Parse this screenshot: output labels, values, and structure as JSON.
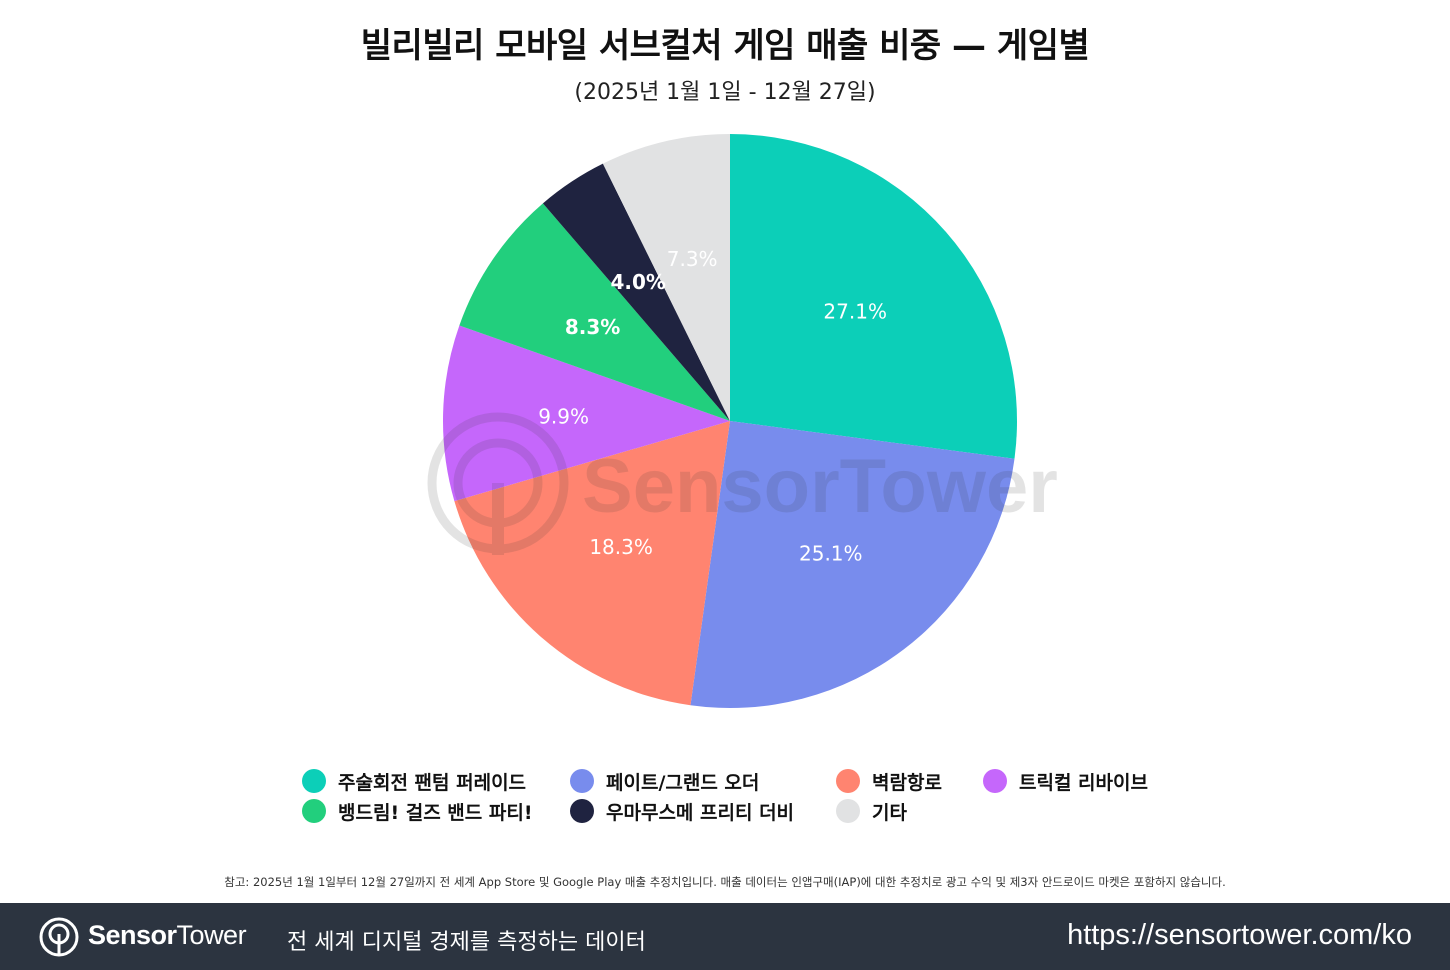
{
  "chart_data": {
    "type": "pie",
    "title": "빌리빌리 모바일 서브컬처 게임 매출 비중 — 게임별",
    "subtitle": "(2025년 1월 1일 - 12월 27일)",
    "series": [
      {
        "name": "주술회전 팬텀 퍼레이드",
        "value": 27.1,
        "label": "27.1%",
        "color": "#0ccfb8"
      },
      {
        "name": "페이트/그랜드 오더",
        "value": 25.1,
        "label": "25.1%",
        "color": "#788ced"
      },
      {
        "name": "벽람항로",
        "value": 18.3,
        "label": "18.3%",
        "color": "#ff8470"
      },
      {
        "name": "트릭컬 리바이브",
        "value": 9.9,
        "label": "9.9%",
        "color": "#c567fb"
      },
      {
        "name": "뱅드림! 걸즈 밴드 파티!",
        "value": 8.3,
        "label": "8.3%",
        "color": "#22cf7d"
      },
      {
        "name": "우마무스메 프리티 더비",
        "value": 4.0,
        "label": "4.0%",
        "color": "#1f2340"
      },
      {
        "name": "기타",
        "value": 7.3,
        "label": "7.3%",
        "color": "#e1e2e3"
      }
    ],
    "legend_position": "bottom"
  },
  "watermark": {
    "text": "SensorTower"
  },
  "note": "참고: 2025년 1월 1일부터 12월 27일까지 전 세계 App Store 및 Google Play 매출 추정치입니다. 매출 데이터는 인앱구매(IAP)에 대한 추정치로 광고 수익 및 제3자 안드로이드 마켓은 포함하지 않습니다.",
  "footer": {
    "brand_bold": "Sensor",
    "brand_light": "Tower",
    "tagline": "전 세계 디지털 경제를 측정하는 데이터",
    "url": "https://sensortower.com/ko",
    "logo_icon": "sensortower-logo-icon",
    "background_color": "#2c3440"
  }
}
